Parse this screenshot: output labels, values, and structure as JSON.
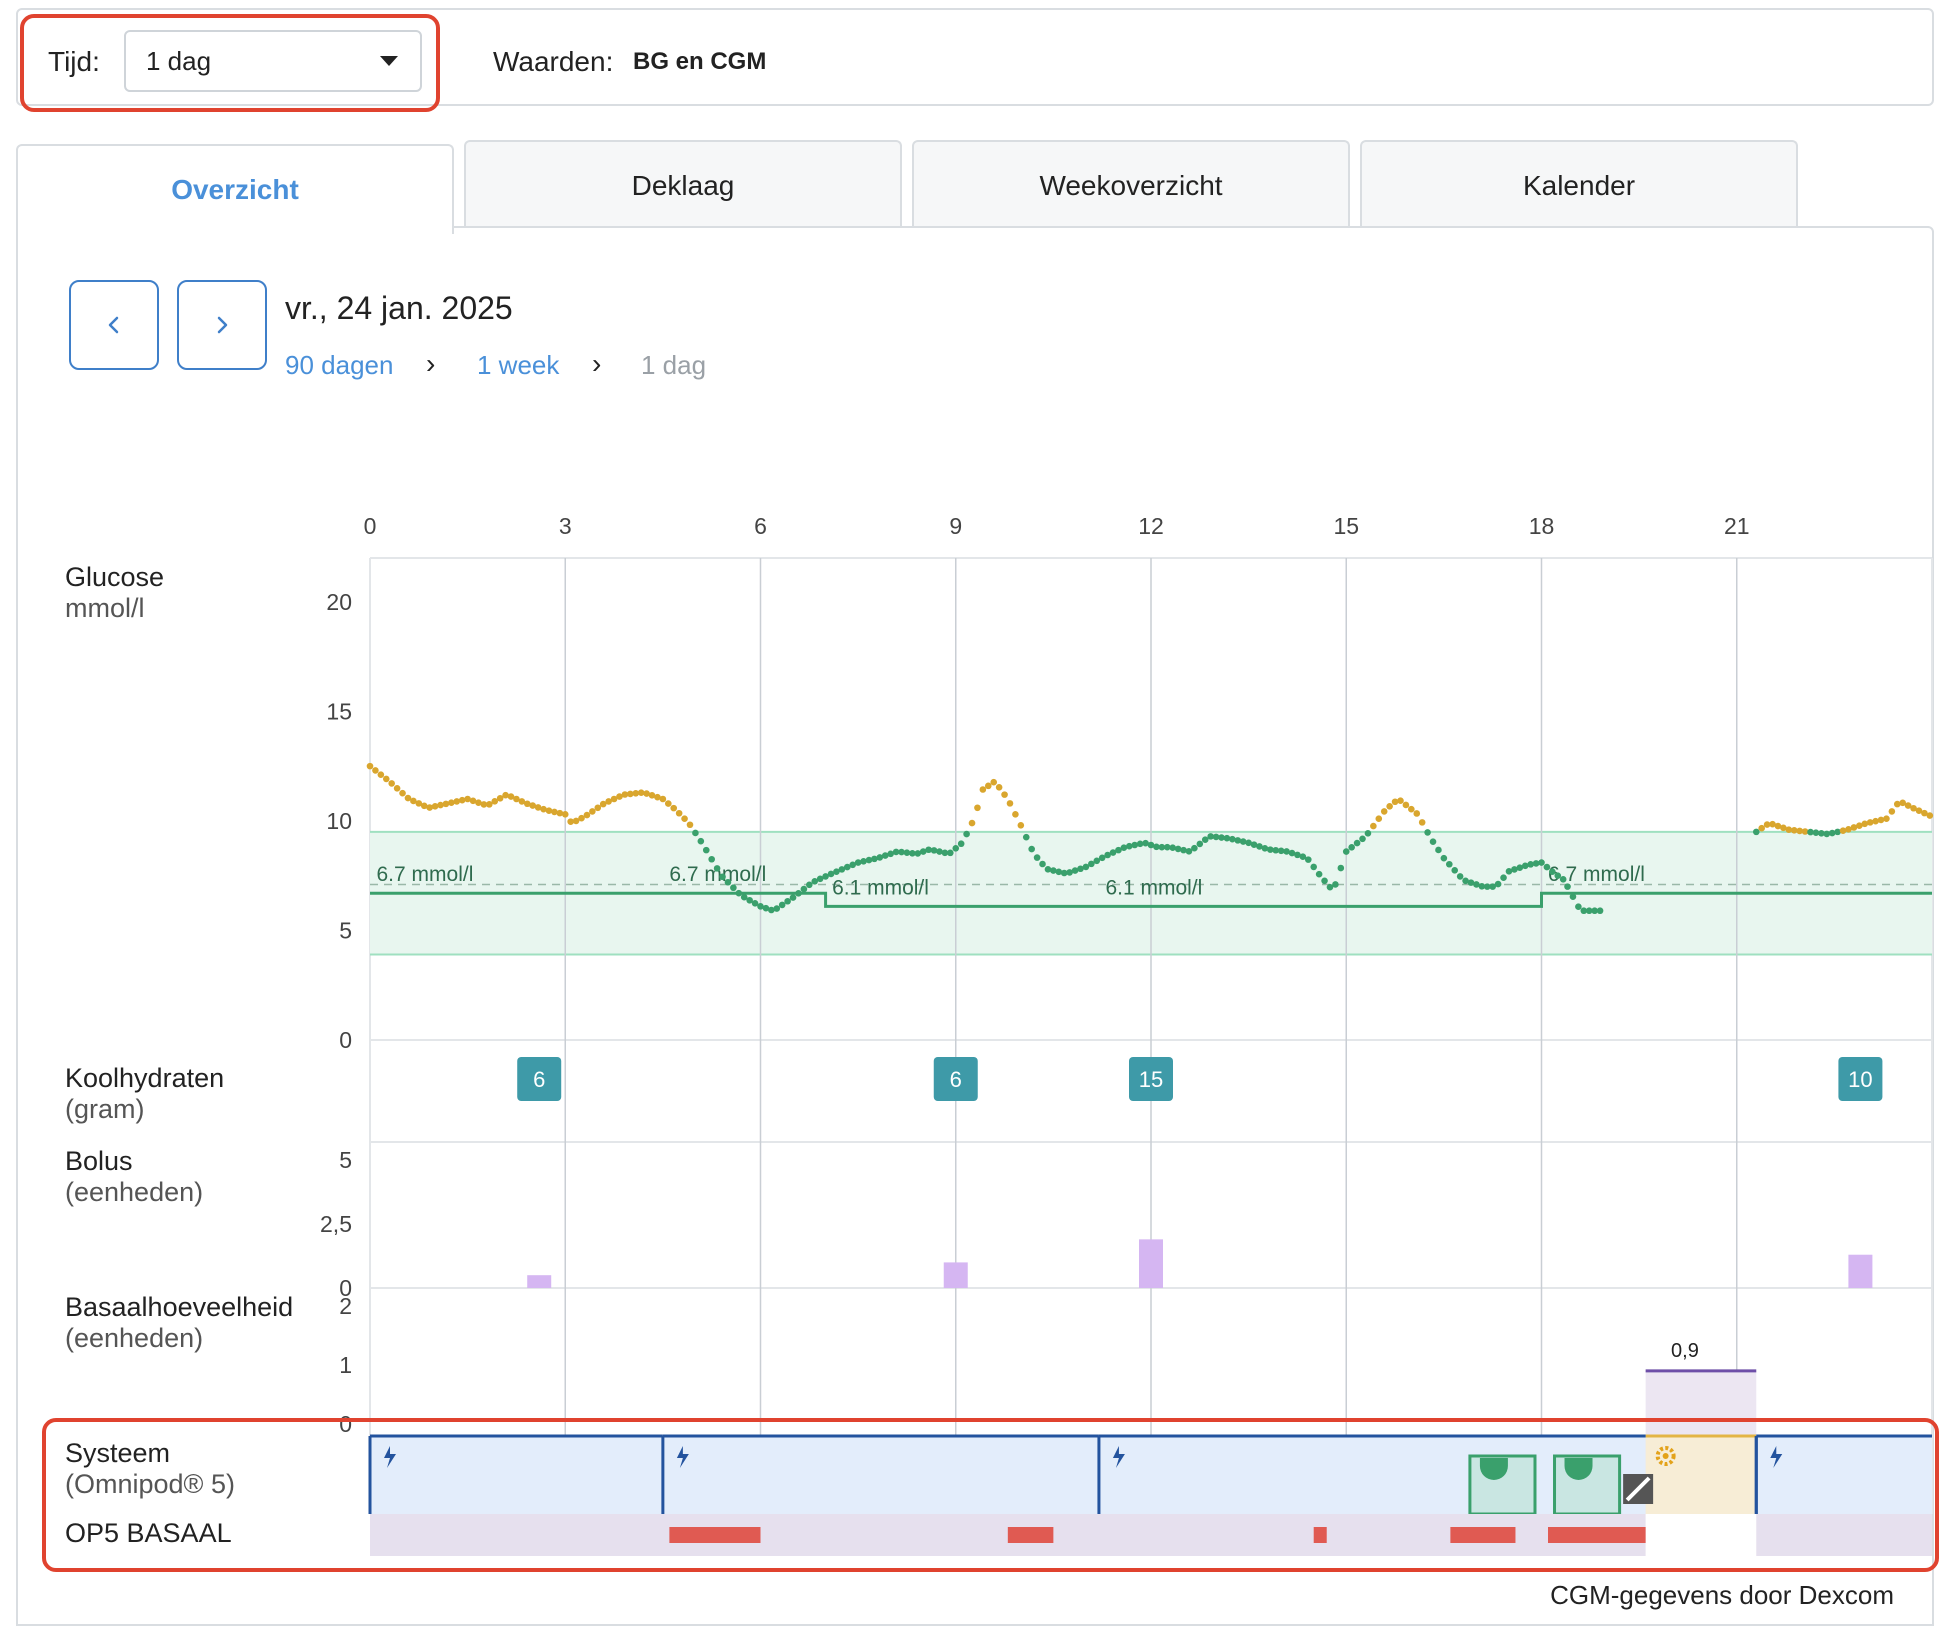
{
  "filter": {
    "time_label": "Tijd:",
    "time_value": "1 dag",
    "values_label": "Waarden:",
    "values_value": "BG en CGM"
  },
  "tabs": [
    {
      "label": "Overzicht",
      "active": true
    },
    {
      "label": "Deklaag",
      "active": false
    },
    {
      "label": "Weekoverzicht",
      "active": false
    },
    {
      "label": "Kalender",
      "active": false
    }
  ],
  "nav": {
    "date": "vr., 24 jan. 2025",
    "breadcrumbs": [
      "90 dagen",
      "1 week",
      "1 dag"
    ]
  },
  "rows": {
    "glucose": {
      "title": "Glucose",
      "unit": "mmol/l"
    },
    "carbs": {
      "title": "Koolhydraten",
      "unit": "(gram)"
    },
    "bolus": {
      "title": "Bolus",
      "unit": "(eenheden)"
    },
    "basal": {
      "title": "Basaalhoeveelheid",
      "unit": "(eenheden)"
    },
    "system": {
      "title": "Systeem",
      "unit": "(Omnipod® 5)"
    },
    "op5": {
      "title": "OP5 BASAAL"
    }
  },
  "footer": {
    "cgm_source": "CGM-gegevens door Dexcom"
  },
  "colors": {
    "in_range": "#3aa06c",
    "high": "#d9a62e",
    "target_band": "#e8f6ef",
    "carb_badge": "#3e9aa8",
    "bolus": "#d5b6f2",
    "system_auto": "#e3edfb",
    "system_border": "#23539e",
    "op5_band": "#e6e0ee",
    "op5_bar": "#e05a52",
    "highlight": "#e0432f"
  },
  "chart_data": {
    "type": "line",
    "x_ticks": [
      "0",
      "3",
      "6",
      "9",
      "12",
      "15",
      "18",
      "21"
    ],
    "x_range": [
      0,
      24
    ],
    "glucose": {
      "y_ticks": [
        "20",
        "15",
        "10",
        "5",
        "0"
      ],
      "ylim": [
        0,
        22
      ],
      "target_range": [
        3.9,
        9.5
      ],
      "targets": [
        {
          "start": 0,
          "end": 7.0,
          "value": 6.7,
          "label": "6.7 mmol/l",
          "label_at": 0.1
        },
        {
          "start": 7.0,
          "end": 18.0,
          "value": 6.1,
          "label": "6.1 mmol/l",
          "label_at": 7.1
        },
        {
          "start": 18.0,
          "end": 24,
          "value": 6.7,
          "label": "6.7 mmol/l",
          "label_at": 18.1
        }
      ],
      "extra_target_labels": [
        {
          "label": "6.7 mmol/l",
          "at": 4.6
        },
        {
          "label": "6.1 mmol/l",
          "at": 11.3
        }
      ],
      "high_threshold": 9.5,
      "cgm_keypoints": [
        [
          0.0,
          12.5
        ],
        [
          0.3,
          11.8
        ],
        [
          0.6,
          11.0
        ],
        [
          0.9,
          10.6
        ],
        [
          1.2,
          10.8
        ],
        [
          1.5,
          11.0
        ],
        [
          1.8,
          10.7
        ],
        [
          2.1,
          11.2
        ],
        [
          2.4,
          10.8
        ],
        [
          2.7,
          10.5
        ],
        [
          3.0,
          10.3
        ],
        [
          3.1,
          9.9
        ],
        [
          3.3,
          10.2
        ],
        [
          3.6,
          10.8
        ],
        [
          3.9,
          11.2
        ],
        [
          4.2,
          11.3
        ],
        [
          4.5,
          11.0
        ],
        [
          4.7,
          10.5
        ],
        [
          4.9,
          9.9
        ],
        [
          5.1,
          9.0
        ],
        [
          5.4,
          7.5
        ],
        [
          5.7,
          6.6
        ],
        [
          6.0,
          6.1
        ],
        [
          6.2,
          5.9
        ],
        [
          6.5,
          6.5
        ],
        [
          6.8,
          7.2
        ],
        [
          7.1,
          7.6
        ],
        [
          7.5,
          8.1
        ],
        [
          7.8,
          8.3
        ],
        [
          8.1,
          8.6
        ],
        [
          8.4,
          8.5
        ],
        [
          8.6,
          8.7
        ],
        [
          8.9,
          8.5
        ],
        [
          9.1,
          9.0
        ],
        [
          9.3,
          10.2
        ],
        [
          9.4,
          11.4
        ],
        [
          9.6,
          11.8
        ],
        [
          9.8,
          11.0
        ],
        [
          10.0,
          9.8
        ],
        [
          10.2,
          8.5
        ],
        [
          10.4,
          7.8
        ],
        [
          10.7,
          7.6
        ],
        [
          11.0,
          7.9
        ],
        [
          11.3,
          8.4
        ],
        [
          11.6,
          8.8
        ],
        [
          11.9,
          9.0
        ],
        [
          12.1,
          8.8
        ],
        [
          12.3,
          8.8
        ],
        [
          12.6,
          8.6
        ],
        [
          12.9,
          9.3
        ],
        [
          13.2,
          9.2
        ],
        [
          13.5,
          9.0
        ],
        [
          13.8,
          8.7
        ],
        [
          14.1,
          8.6
        ],
        [
          14.4,
          8.3
        ],
        [
          14.6,
          7.5
        ],
        [
          14.8,
          6.8
        ],
        [
          15.0,
          8.6
        ],
        [
          15.3,
          9.3
        ],
        [
          15.6,
          10.5
        ],
        [
          15.8,
          11.0
        ],
        [
          16.1,
          10.3
        ],
        [
          16.3,
          9.2
        ],
        [
          16.5,
          8.3
        ],
        [
          16.8,
          7.3
        ],
        [
          17.1,
          7.0
        ],
        [
          17.3,
          7.0
        ],
        [
          17.5,
          7.7
        ],
        [
          17.8,
          8.0
        ],
        [
          18.0,
          8.1
        ],
        [
          18.2,
          7.6
        ],
        [
          18.4,
          7.2
        ]
      ],
      "cgm_segments": [
        [
          0.0,
          18.4
        ],
        [
          18.4,
          18.9
        ],
        [
          21.3,
          24.0
        ]
      ],
      "cgm_tail_a": [
        [
          18.4,
          7.0
        ],
        [
          18.6,
          5.9
        ],
        [
          18.9,
          5.9
        ]
      ],
      "cgm_tail_b": [
        [
          21.3,
          9.5
        ],
        [
          21.5,
          9.9
        ],
        [
          21.8,
          9.6
        ],
        [
          22.1,
          9.5
        ],
        [
          22.4,
          9.4
        ],
        [
          22.7,
          9.6
        ],
        [
          23.0,
          9.9
        ],
        [
          23.3,
          10.1
        ],
        [
          23.5,
          10.9
        ],
        [
          23.7,
          10.6
        ],
        [
          24.0,
          10.2
        ]
      ]
    },
    "carbs": [
      {
        "x": 2.6,
        "value": "6"
      },
      {
        "x": 9.0,
        "value": "6"
      },
      {
        "x": 12.0,
        "value": "15"
      },
      {
        "x": 22.9,
        "value": "10"
      }
    ],
    "bolus": {
      "y_ticks": [
        "5",
        "2,5",
        "0"
      ],
      "ylim": [
        0,
        5
      ],
      "bars": [
        {
          "x": 2.6,
          "value": 0.5
        },
        {
          "x": 9.0,
          "value": 1.0
        },
        {
          "x": 12.0,
          "value": 1.9
        },
        {
          "x": 22.9,
          "value": 1.3
        }
      ]
    },
    "basal": {
      "y_ticks": [
        "2",
        "1",
        "0"
      ],
      "ylim": [
        0,
        2
      ],
      "segments": [
        {
          "start": 19.6,
          "end": 21.3,
          "value": 0.9,
          "label": "0,9"
        }
      ]
    },
    "system": {
      "auto_segments": [
        [
          0,
          4.5
        ],
        [
          4.5,
          11.2
        ],
        [
          11.2,
          19.6
        ],
        [
          21.3,
          24
        ]
      ],
      "manual_segments": [
        [
          19.6,
          21.3
        ]
      ],
      "pod_changes": [
        [
          16.9,
          17.9
        ],
        [
          18.2,
          19.2
        ]
      ],
      "pause_marker": 19.5
    },
    "op5_alerts": [
      [
        4.6,
        6.0
      ],
      [
        9.8,
        10.5
      ],
      [
        14.5,
        14.7
      ],
      [
        16.6,
        17.6
      ],
      [
        18.1,
        19.6
      ]
    ]
  }
}
